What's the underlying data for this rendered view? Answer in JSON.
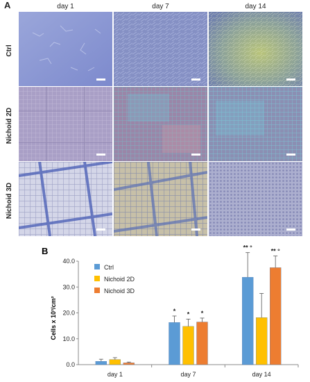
{
  "panel_a": {
    "letter": "A",
    "columns": [
      "day 1",
      "day 7",
      "day 14"
    ],
    "rows": [
      "Ctrl",
      "Nichoid 2D",
      "Nichoid 3D"
    ]
  },
  "panel_b": {
    "letter": "B"
  },
  "chart_data": {
    "type": "bar",
    "categories": [
      "day 1",
      "day 7",
      "day 14"
    ],
    "ylabel": "Cells x 10³/cm²",
    "ylim": [
      0,
      40
    ],
    "yticks": [
      "0.0",
      "10.0",
      "20.0",
      "30.0",
      "40.0"
    ],
    "series": [
      {
        "name": "Ctrl",
        "color": "#5b9bd5",
        "values": [
          1.3,
          16.3,
          33.8
        ],
        "errors": [
          0.8,
          2.5,
          9.5
        ]
      },
      {
        "name": "Nichoid 2D",
        "color": "#ffc000",
        "values": [
          2.0,
          14.8,
          18.2
        ],
        "errors": [
          0.7,
          2.8,
          9.3
        ]
      },
      {
        "name": "Nichoid 3D",
        "color": "#ed7d31",
        "values": [
          0.7,
          16.5,
          37.5
        ],
        "errors": [
          0.3,
          1.5,
          4.5
        ]
      }
    ],
    "annotations": [
      {
        "category": "day 7",
        "series": "Ctrl",
        "text": "*"
      },
      {
        "category": "day 7",
        "series": "Nichoid 2D",
        "text": "*"
      },
      {
        "category": "day 7",
        "series": "Nichoid 3D",
        "text": "*"
      },
      {
        "category": "day 14",
        "series": "Ctrl",
        "text": "** °"
      },
      {
        "category": "day 14",
        "series": "Nichoid 3D",
        "text": "** °"
      }
    ],
    "legend_position": "top-left",
    "grid": false
  }
}
